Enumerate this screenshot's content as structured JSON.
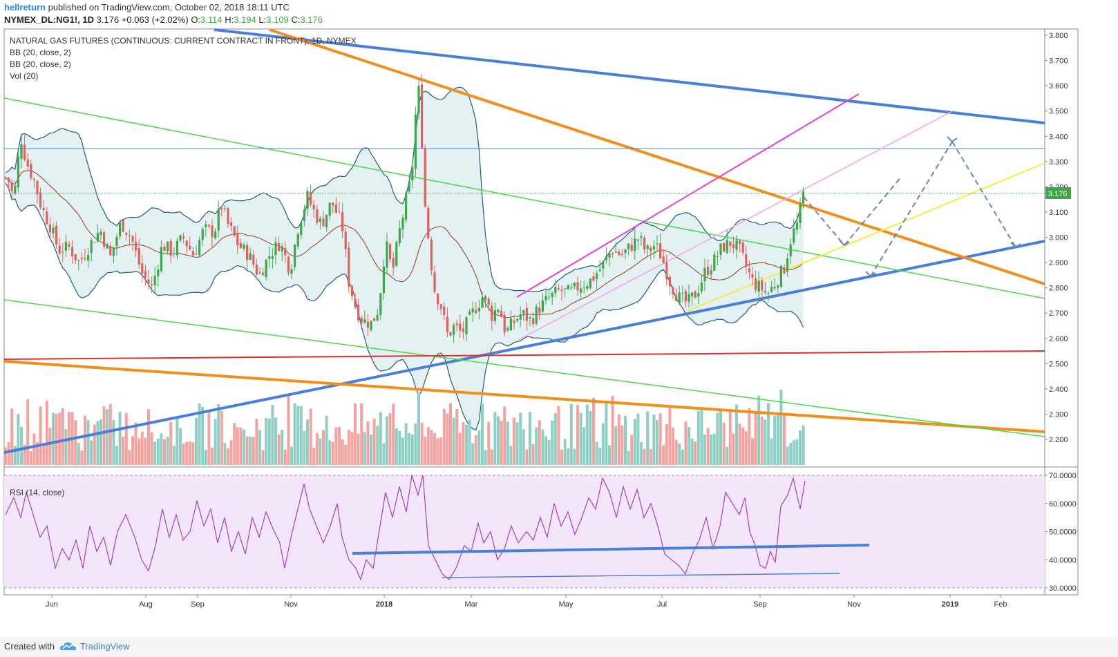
{
  "header": {
    "author": "hellreturn",
    "published": "published on TradingView.com, October 02, 2018 18:11 UTC",
    "symbol": "NYMEX_DL:NG1!, 1D",
    "last": "3.176",
    "change": "+0.063 (+2.02%)",
    "open_label": "O:",
    "open": "3.114",
    "high_label": "H:",
    "high": "3.194",
    "low_label": "L:",
    "low": "3.109",
    "close_label": "C:",
    "close": "3.176"
  },
  "legend": {
    "title": "NATURAL GAS FUTURES (CONTINUOUS: CURRENT CONTRACT IN FRONT), 1D, NYMEX",
    "bb1": "BB (20, close, 2)",
    "bb2": "BB (20, close, 2)",
    "vol": "Vol (20)",
    "rsi": "RSI (14, close)"
  },
  "footer": {
    "created": "Created with",
    "brand": "TradingView"
  },
  "colors": {
    "up": "#3fa64a",
    "down": "#e0605a",
    "vol_up": "#8fcfc3",
    "vol_down": "#f5a3a0",
    "bb_band": "#1f5a78",
    "bb_fill": "#e3f1f2",
    "bb_mid": "#8b3a1f",
    "blue": "#4a7fd9",
    "orange": "#f28e1c",
    "green": "#45d945",
    "red": "#e52c2c",
    "magenta": "#e53ed8",
    "pink": "#f4a0ea",
    "yellow": "#f2ef3c",
    "rsi_line": "#a040c0",
    "rsi_bg": "#f4e6fa"
  },
  "chart_data": [
    {
      "type": "candlestick",
      "title": "NATURAL GAS FUTURES (CONTINUOUS: CURRENT CONTRACT IN FRONT), 1D, NYMEX",
      "x_ticks": [
        "Jun",
        "Aug",
        "Sep",
        "Nov",
        "2018",
        "Mar",
        "May",
        "Jul",
        "Sep",
        "Nov",
        "2019",
        "Feb"
      ],
      "y_ticks": [
        "3.800",
        "3.700",
        "3.600",
        "3.500",
        "3.400",
        "3.300",
        "3.200",
        "3.100",
        "3.000",
        "2.900",
        "2.800",
        "2.700",
        "2.600",
        "2.500",
        "2.400",
        "2.300",
        "2.200"
      ],
      "ylim": [
        2.15,
        3.82
      ],
      "last_price_label": "3.176",
      "close_path": [
        [
          0,
          3.18
        ],
        [
          10,
          3.25
        ],
        [
          20,
          3.15
        ],
        [
          30,
          3.4
        ],
        [
          38,
          3.3
        ],
        [
          50,
          3.22
        ],
        [
          60,
          3.12
        ],
        [
          72,
          3.05
        ],
        [
          85,
          2.95
        ],
        [
          100,
          2.96
        ],
        [
          115,
          2.9
        ],
        [
          130,
          2.97
        ],
        [
          145,
          3.03
        ],
        [
          160,
          2.92
        ],
        [
          175,
          3.06
        ],
        [
          190,
          3.0
        ],
        [
          205,
          2.86
        ],
        [
          220,
          2.8
        ],
        [
          235,
          2.97
        ],
        [
          250,
          2.94
        ],
        [
          265,
          3.0
        ],
        [
          280,
          2.93
        ],
        [
          295,
          3.03
        ],
        [
          310,
          3.02
        ],
        [
          320,
          3.13
        ],
        [
          330,
          3.05
        ],
        [
          345,
          2.97
        ],
        [
          360,
          2.93
        ],
        [
          375,
          2.85
        ],
        [
          390,
          2.93
        ],
        [
          405,
          2.98
        ],
        [
          420,
          2.87
        ],
        [
          432,
          3.05
        ],
        [
          445,
          3.16
        ],
        [
          455,
          3.1
        ],
        [
          465,
          3.05
        ],
        [
          480,
          3.14
        ],
        [
          495,
          3.05
        ],
        [
          505,
          2.82
        ],
        [
          515,
          2.72
        ],
        [
          525,
          2.67
        ],
        [
          538,
          2.66
        ],
        [
          548,
          2.72
        ],
        [
          558,
          2.98
        ],
        [
          568,
          2.86
        ],
        [
          578,
          3.02
        ],
        [
          588,
          3.15
        ],
        [
          596,
          3.25
        ],
        [
          603,
          3.55
        ],
        [
          608,
          3.6
        ],
        [
          613,
          3.18
        ],
        [
          620,
          3.0
        ],
        [
          628,
          2.8
        ],
        [
          638,
          2.73
        ],
        [
          648,
          2.61
        ],
        [
          658,
          2.65
        ],
        [
          668,
          2.62
        ],
        [
          678,
          2.67
        ],
        [
          690,
          2.73
        ],
        [
          700,
          2.77
        ],
        [
          712,
          2.69
        ],
        [
          722,
          2.73
        ],
        [
          732,
          2.62
        ],
        [
          742,
          2.66
        ],
        [
          755,
          2.7
        ],
        [
          768,
          2.67
        ],
        [
          780,
          2.72
        ],
        [
          795,
          2.76
        ],
        [
          810,
          2.79
        ],
        [
          825,
          2.78
        ],
        [
          840,
          2.81
        ],
        [
          855,
          2.83
        ],
        [
          870,
          2.88
        ],
        [
          885,
          2.95
        ],
        [
          900,
          2.93
        ],
        [
          915,
          2.97
        ],
        [
          925,
          3.0
        ],
        [
          935,
          2.94
        ],
        [
          948,
          2.97
        ],
        [
          958,
          2.92
        ],
        [
          970,
          2.82
        ],
        [
          982,
          2.76
        ],
        [
          995,
          2.74
        ],
        [
          1008,
          2.78
        ],
        [
          1020,
          2.86
        ],
        [
          1032,
          2.9
        ],
        [
          1045,
          2.96
        ],
        [
          1058,
          2.98
        ],
        [
          1070,
          2.95
        ],
        [
          1080,
          2.88
        ],
        [
          1090,
          2.82
        ],
        [
          1100,
          2.8
        ],
        [
          1112,
          2.78
        ],
        [
          1122,
          2.82
        ],
        [
          1135,
          2.88
        ],
        [
          1145,
          3.0
        ],
        [
          1155,
          3.06
        ],
        [
          1163,
          3.176
        ]
      ]
    },
    {
      "type": "line",
      "title": "RSI (14, close)",
      "y_ticks": [
        "70.0000",
        "60.0000",
        "50.0000",
        "40.0000",
        "30.0000"
      ],
      "ylim": [
        28,
        72
      ],
      "rsi_path": [
        [
          8,
          56
        ],
        [
          20,
          62
        ],
        [
          30,
          55
        ],
        [
          38,
          64
        ],
        [
          48,
          56
        ],
        [
          58,
          48
        ],
        [
          68,
          52
        ],
        [
          80,
          37
        ],
        [
          90,
          44
        ],
        [
          100,
          40
        ],
        [
          110,
          47
        ],
        [
          120,
          37
        ],
        [
          130,
          52
        ],
        [
          140,
          43
        ],
        [
          150,
          48
        ],
        [
          160,
          38
        ],
        [
          170,
          50
        ],
        [
          182,
          56
        ],
        [
          195,
          48
        ],
        [
          205,
          40
        ],
        [
          215,
          36
        ],
        [
          225,
          45
        ],
        [
          235,
          58
        ],
        [
          245,
          48
        ],
        [
          255,
          56
        ],
        [
          265,
          47
        ],
        [
          275,
          50
        ],
        [
          285,
          61
        ],
        [
          295,
          52
        ],
        [
          305,
          58
        ],
        [
          315,
          46
        ],
        [
          325,
          55
        ],
        [
          335,
          43
        ],
        [
          345,
          50
        ],
        [
          355,
          42
        ],
        [
          365,
          55
        ],
        [
          375,
          48
        ],
        [
          385,
          57
        ],
        [
          395,
          51
        ],
        [
          405,
          46
        ],
        [
          412,
          37
        ],
        [
          422,
          49
        ],
        [
          432,
          59
        ],
        [
          440,
          67
        ],
        [
          448,
          58
        ],
        [
          458,
          52
        ],
        [
          468,
          46
        ],
        [
          478,
          52
        ],
        [
          488,
          60
        ],
        [
          495,
          48
        ],
        [
          505,
          40
        ],
        [
          515,
          37
        ],
        [
          522,
          33
        ],
        [
          530,
          40
        ],
        [
          540,
          37
        ],
        [
          550,
          52
        ],
        [
          558,
          64
        ],
        [
          568,
          55
        ],
        [
          578,
          66
        ],
        [
          588,
          57
        ],
        [
          596,
          70
        ],
        [
          605,
          63
        ],
        [
          612,
          70
        ],
        [
          620,
          45
        ],
        [
          630,
          40
        ],
        [
          640,
          35
        ],
        [
          650,
          33
        ],
        [
          660,
          37
        ],
        [
          672,
          45
        ],
        [
          682,
          43
        ],
        [
          692,
          53
        ],
        [
          700,
          46
        ],
        [
          710,
          50
        ],
        [
          720,
          40
        ],
        [
          730,
          44
        ],
        [
          740,
          52
        ],
        [
          750,
          46
        ],
        [
          762,
          50
        ],
        [
          772,
          47
        ],
        [
          782,
          55
        ],
        [
          792,
          48
        ],
        [
          802,
          60
        ],
        [
          812,
          52
        ],
        [
          822,
          57
        ],
        [
          832,
          49
        ],
        [
          842,
          55
        ],
        [
          852,
          62
        ],
        [
          862,
          58
        ],
        [
          872,
          69
        ],
        [
          882,
          64
        ],
        [
          892,
          55
        ],
        [
          902,
          66
        ],
        [
          912,
          58
        ],
        [
          922,
          65
        ],
        [
          932,
          55
        ],
        [
          942,
          60
        ],
        [
          952,
          52
        ],
        [
          962,
          42
        ],
        [
          972,
          40
        ],
        [
          982,
          38
        ],
        [
          992,
          35
        ],
        [
          1002,
          42
        ],
        [
          1012,
          47
        ],
        [
          1022,
          55
        ],
        [
          1032,
          44
        ],
        [
          1042,
          52
        ],
        [
          1050,
          64
        ],
        [
          1060,
          60
        ],
        [
          1070,
          56
        ],
        [
          1078,
          62
        ],
        [
          1085,
          50
        ],
        [
          1093,
          45
        ],
        [
          1100,
          38
        ],
        [
          1108,
          37
        ],
        [
          1115,
          43
        ],
        [
          1122,
          39
        ],
        [
          1130,
          59
        ],
        [
          1140,
          63
        ],
        [
          1148,
          69
        ],
        [
          1158,
          58
        ],
        [
          1165,
          68
        ]
      ]
    }
  ]
}
